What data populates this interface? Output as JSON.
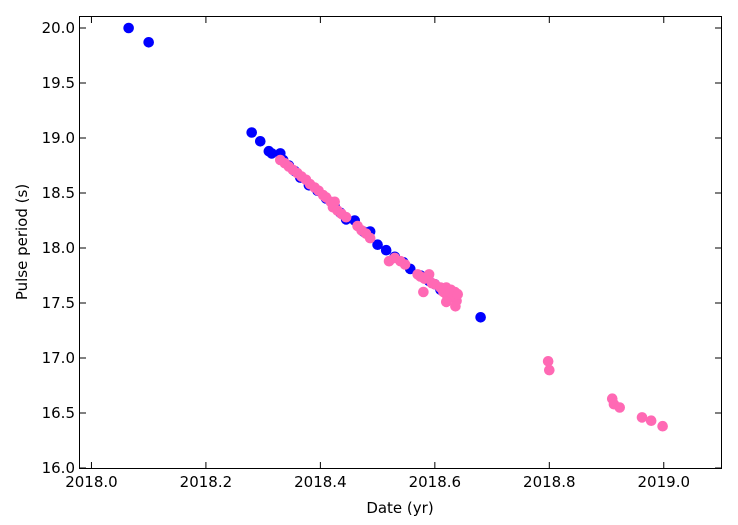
{
  "chart_data": {
    "type": "scatter",
    "xlabel": "Date (yr)",
    "ylabel": "Pulse period (s)",
    "xlim": [
      2017.98,
      2019.1
    ],
    "ylim": [
      16.0,
      20.1
    ],
    "xticks": [
      2018.0,
      2018.2,
      2018.4,
      2018.6,
      2018.8,
      2019.0
    ],
    "xtick_labels": [
      "2018.0",
      "2018.2",
      "2018.4",
      "2018.6",
      "2018.8",
      "2019.0"
    ],
    "yticks": [
      16.0,
      16.5,
      17.0,
      17.5,
      18.0,
      18.5,
      19.0,
      19.5,
      20.0
    ],
    "ytick_labels": [
      "16.0",
      "16.5",
      "17.0",
      "17.5",
      "18.0",
      "18.5",
      "19.0",
      "19.5",
      "20.0"
    ],
    "grid": false,
    "series": [
      {
        "color": "#0000ff",
        "points": [
          [
            2018.065,
            20.0
          ],
          [
            2018.1,
            19.87
          ],
          [
            2018.28,
            19.05
          ],
          [
            2018.295,
            18.97
          ],
          [
            2018.31,
            18.88
          ],
          [
            2018.315,
            18.86
          ],
          [
            2018.33,
            18.86
          ],
          [
            2018.335,
            18.8
          ],
          [
            2018.345,
            18.75
          ],
          [
            2018.355,
            18.7
          ],
          [
            2018.365,
            18.64
          ],
          [
            2018.38,
            18.57
          ],
          [
            2018.395,
            18.52
          ],
          [
            2018.41,
            18.45
          ],
          [
            2018.425,
            18.38
          ],
          [
            2018.435,
            18.32
          ],
          [
            2018.445,
            18.26
          ],
          [
            2018.46,
            18.25
          ],
          [
            2018.475,
            18.15
          ],
          [
            2018.487,
            18.15
          ],
          [
            2018.5,
            18.03
          ],
          [
            2018.515,
            17.98
          ],
          [
            2018.53,
            17.92
          ],
          [
            2018.545,
            17.87
          ],
          [
            2018.557,
            17.81
          ],
          [
            2018.575,
            17.75
          ],
          [
            2018.59,
            17.7
          ],
          [
            2018.6,
            17.67
          ],
          [
            2018.61,
            17.62
          ],
          [
            2018.625,
            17.62
          ],
          [
            2018.68,
            17.37
          ]
        ]
      },
      {
        "color": "#ff69b4",
        "points": [
          [
            2018.33,
            18.8
          ],
          [
            2018.338,
            18.77
          ],
          [
            2018.345,
            18.74
          ],
          [
            2018.352,
            18.71
          ],
          [
            2018.36,
            18.68
          ],
          [
            2018.367,
            18.65
          ],
          [
            2018.375,
            18.62
          ],
          [
            2018.382,
            18.58
          ],
          [
            2018.39,
            18.55
          ],
          [
            2018.397,
            18.52
          ],
          [
            2018.405,
            18.48
          ],
          [
            2018.41,
            18.46
          ],
          [
            2018.418,
            18.42
          ],
          [
            2018.425,
            18.42
          ],
          [
            2018.422,
            18.37
          ],
          [
            2018.43,
            18.34
          ],
          [
            2018.437,
            18.31
          ],
          [
            2018.445,
            18.28
          ],
          [
            2018.465,
            18.2
          ],
          [
            2018.472,
            18.16
          ],
          [
            2018.48,
            18.13
          ],
          [
            2018.487,
            18.09
          ],
          [
            2018.52,
            17.88
          ],
          [
            2018.53,
            17.91
          ],
          [
            2018.54,
            17.88
          ],
          [
            2018.548,
            17.85
          ],
          [
            2018.57,
            17.76
          ],
          [
            2018.575,
            17.74
          ],
          [
            2018.582,
            17.72
          ],
          [
            2018.59,
            17.76
          ],
          [
            2018.595,
            17.68
          ],
          [
            2018.6,
            17.67
          ],
          [
            2018.58,
            17.6
          ],
          [
            2018.61,
            17.64
          ],
          [
            2018.615,
            17.6
          ],
          [
            2018.62,
            17.64
          ],
          [
            2018.622,
            17.56
          ],
          [
            2018.628,
            17.62
          ],
          [
            2018.632,
            17.55
          ],
          [
            2018.635,
            17.6
          ],
          [
            2018.638,
            17.52
          ],
          [
            2018.64,
            17.58
          ],
          [
            2018.62,
            17.51
          ],
          [
            2018.636,
            17.47
          ],
          [
            2018.798,
            16.97
          ],
          [
            2018.8,
            16.89
          ],
          [
            2018.91,
            16.63
          ],
          [
            2018.913,
            16.58
          ],
          [
            2018.923,
            16.55
          ],
          [
            2018.962,
            16.46
          ],
          [
            2018.978,
            16.43
          ],
          [
            2018.998,
            16.38
          ]
        ]
      }
    ]
  }
}
